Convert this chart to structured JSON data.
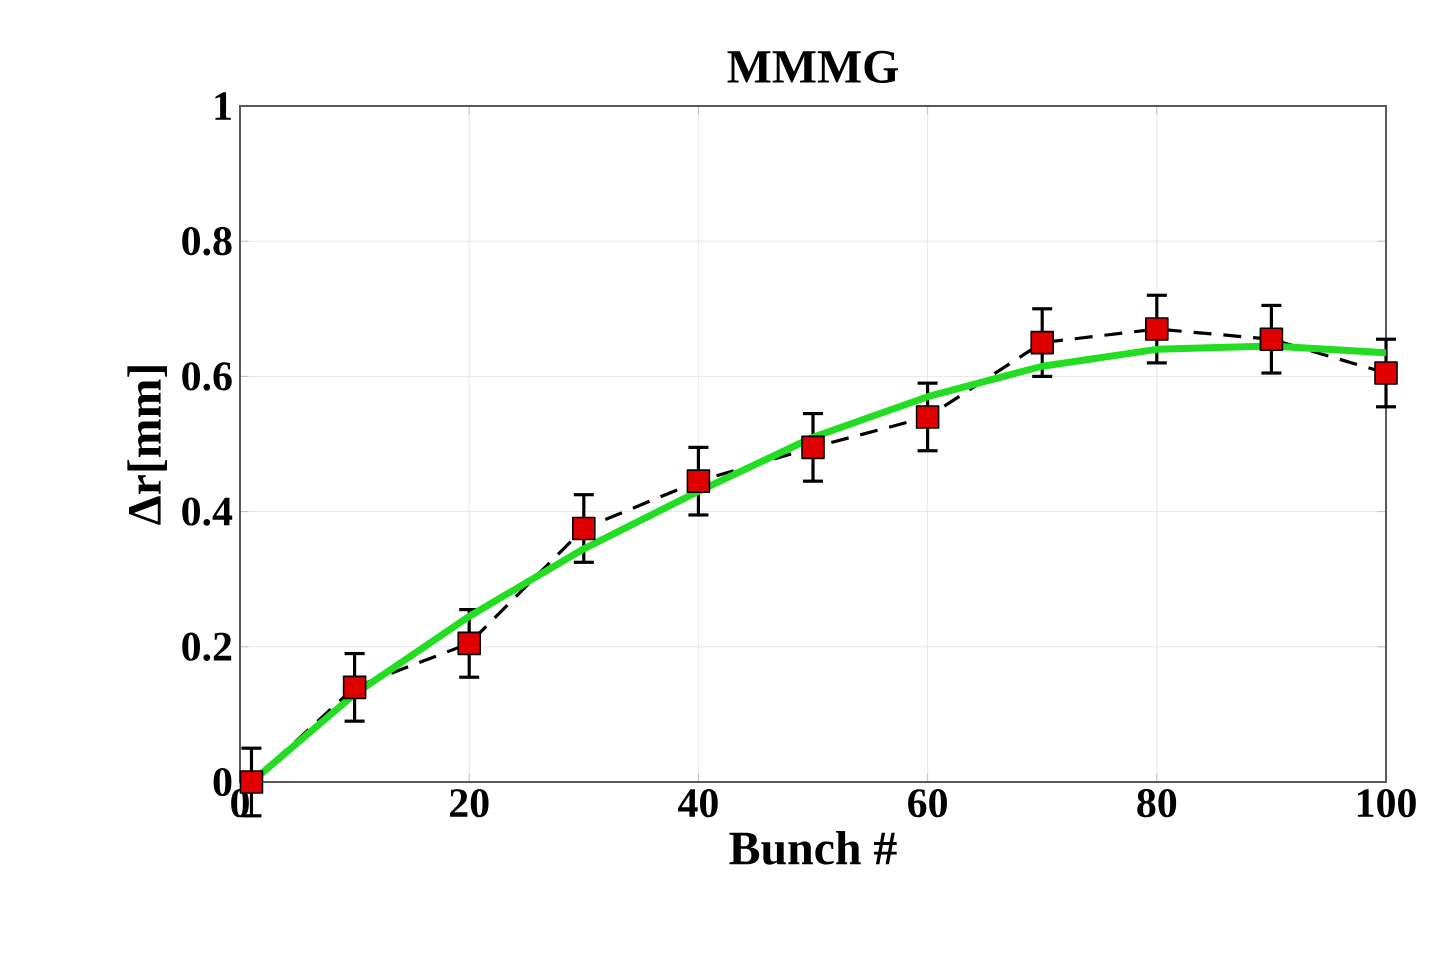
{
  "chart_data": {
    "type": "line",
    "title": "MMMG",
    "xlabel": "Bunch #",
    "ylabel": "Δr[mm]",
    "xlim": [
      0,
      100
    ],
    "ylim": [
      0,
      1
    ],
    "xticks": [
      0,
      20,
      40,
      60,
      80,
      100
    ],
    "yticks": [
      0,
      0.2,
      0.4,
      0.6,
      0.8,
      1
    ],
    "grid": true,
    "series": [
      {
        "color": "#e00000",
        "marker": "square",
        "line_style": "dashed",
        "x": [
          1,
          10,
          20,
          30,
          40,
          50,
          60,
          70,
          80,
          90,
          100
        ],
        "values": [
          0,
          0.14,
          0.205,
          0.375,
          0.445,
          0.495,
          0.54,
          0.65,
          0.67,
          0.655,
          0.605
        ],
        "errors": [
          0.05,
          0.05,
          0.05,
          0.05,
          0.05,
          0.05,
          0.05,
          0.05,
          0.05,
          0.05,
          0.05
        ]
      },
      {
        "color": "#22dd22",
        "marker": "none",
        "line_style": "solid",
        "x": [
          1,
          10,
          20,
          30,
          40,
          50,
          60,
          70,
          80,
          90,
          100
        ],
        "values": [
          0,
          0.13,
          0.245,
          0.345,
          0.43,
          0.51,
          0.57,
          0.615,
          0.64,
          0.645,
          0.635
        ]
      }
    ]
  }
}
